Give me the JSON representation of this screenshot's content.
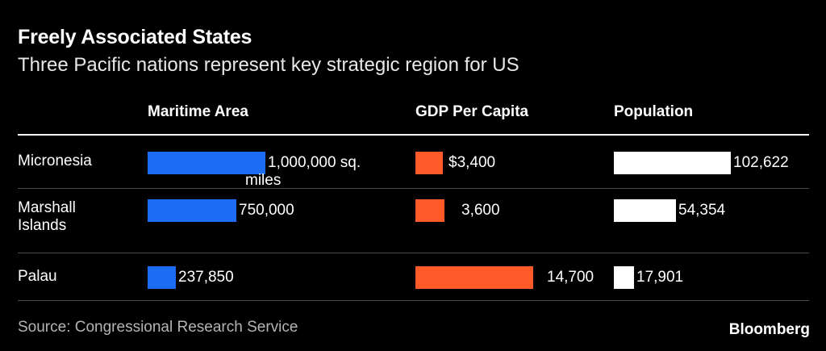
{
  "title": "Freely Associated States",
  "subtitle": "Three Pacific nations represent key strategic region for US",
  "source": "Source: Congressional Research Service",
  "brand": "Bloomberg",
  "colors": {
    "maritime_area": "#1c6cf6",
    "gdp_per_capita": "#ff5a28",
    "population": "#ffffff",
    "background": "#000000"
  },
  "chart_data": {
    "type": "bar",
    "orientation": "horizontal",
    "categories": [
      "Micronesia",
      "Marshall\nIslands",
      "Palau"
    ],
    "series": [
      {
        "name": "Maritime Area",
        "values": [
          1000000,
          750000,
          237850
        ],
        "labels": [
          "1,000,000 sq.\nmiles",
          "750,000",
          "237,850"
        ]
      },
      {
        "name": "GDP Per Capita",
        "values": [
          3400,
          3600,
          14700
        ],
        "labels": [
          "$3,400",
          "3,600",
          "14,700"
        ]
      },
      {
        "name": "Population",
        "values": [
          102622,
          54354,
          17901
        ],
        "labels": [
          "102,622",
          "54,354",
          "17,901"
        ]
      }
    ]
  }
}
